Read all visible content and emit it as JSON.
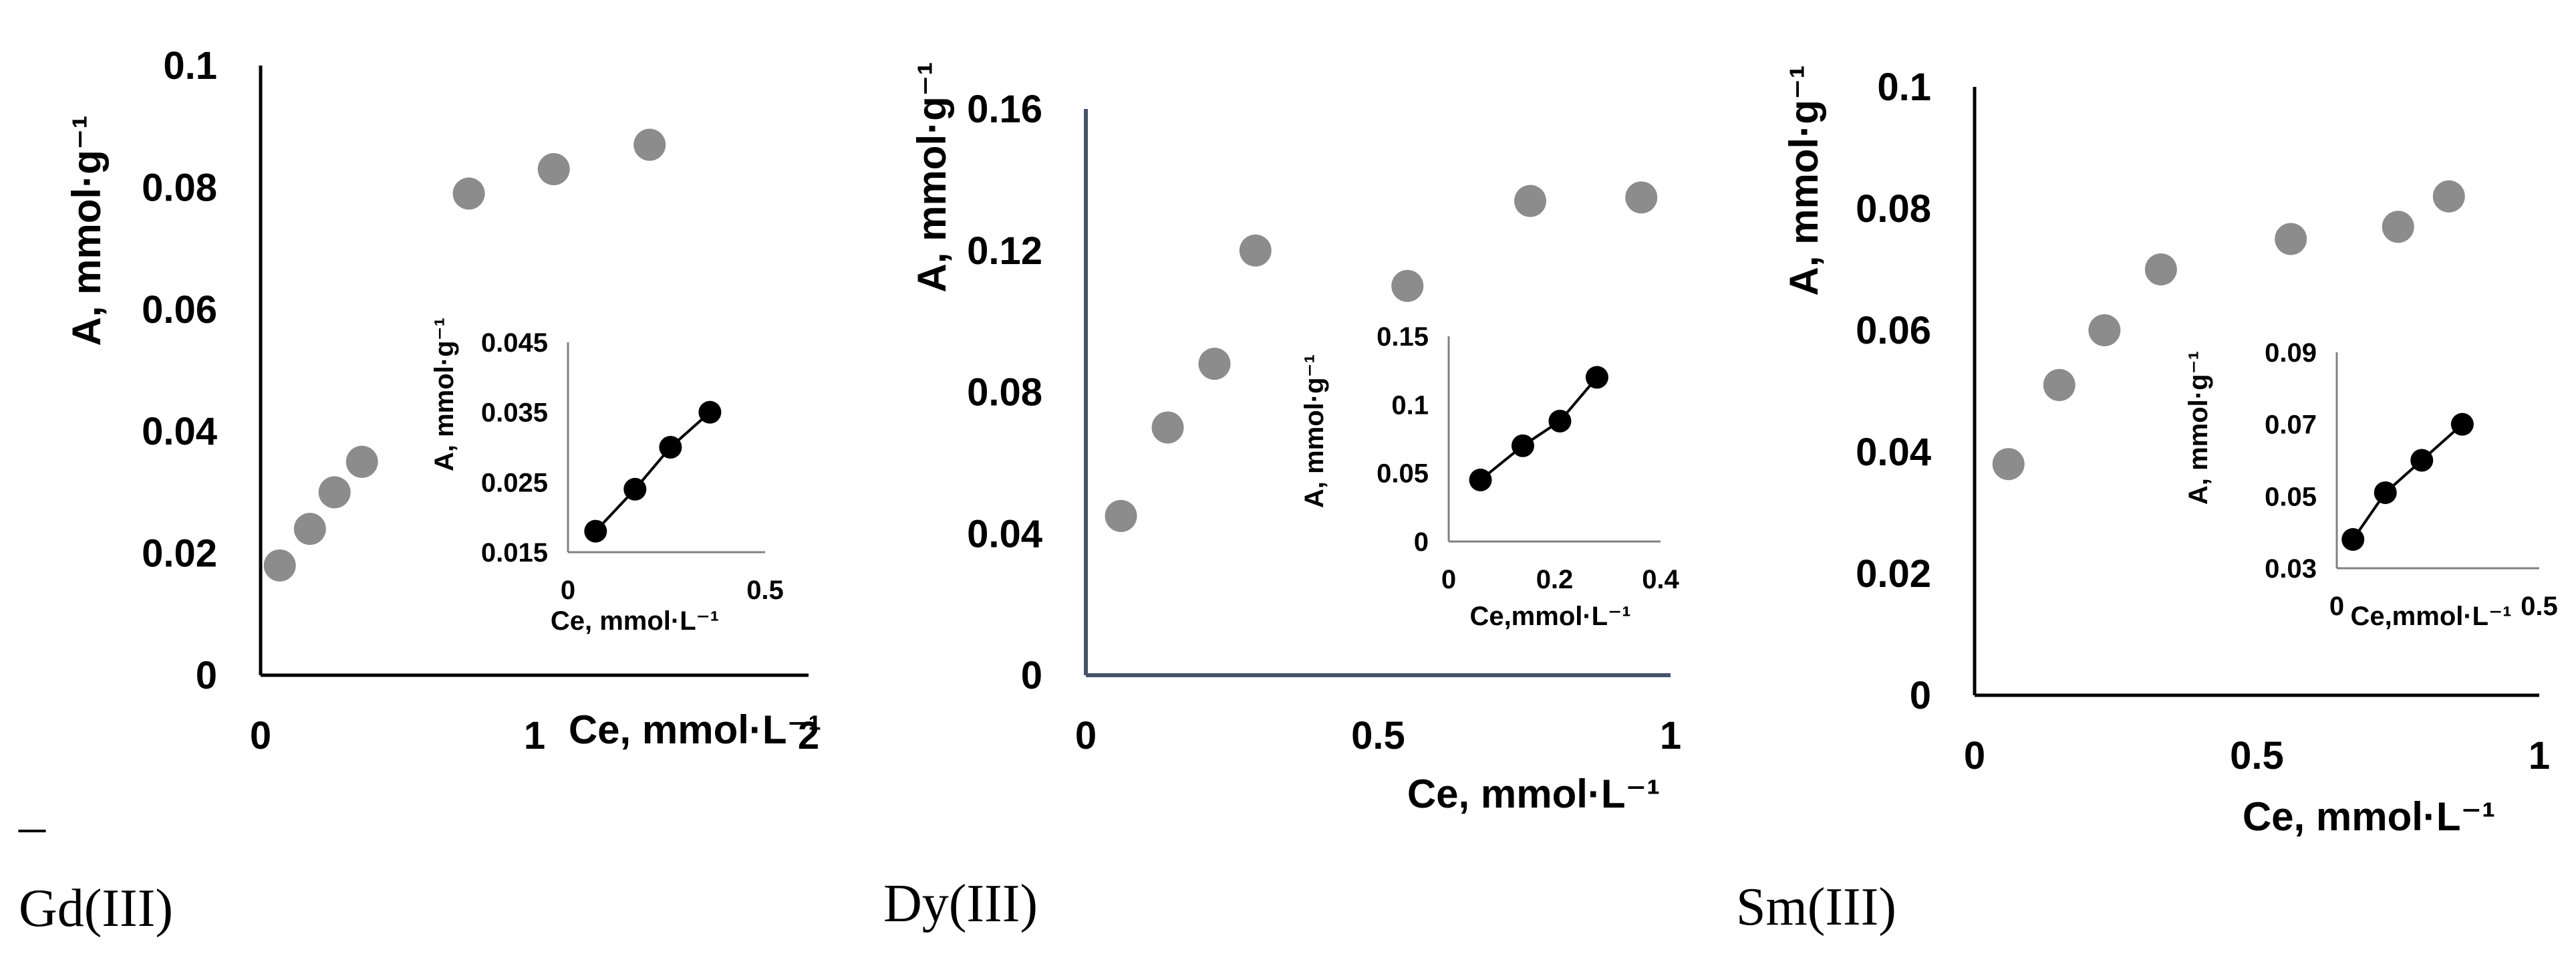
{
  "stray_mark": "–",
  "chart_data": [
    {
      "type": "scatter",
      "panel": "Gd(III)",
      "caption": "Gd(III)",
      "xlabel": "Ce, mmol·L⁻¹",
      "ylabel": "A, mmol·g⁻¹",
      "xlim": [
        0,
        2
      ],
      "ylim": [
        0,
        0.1
      ],
      "xticks": [
        "0",
        "1",
        "2"
      ],
      "yticks": [
        "0",
        "0.02",
        "0.04",
        "0.06",
        "0.08",
        "0.1"
      ],
      "series": [
        {
          "x": [
            0.07,
            0.18,
            0.27,
            0.37,
            0.76,
            1.07,
            1.42
          ],
          "y": [
            0.018,
            0.024,
            0.03,
            0.035,
            0.079,
            0.083,
            0.087
          ],
          "color": "#8c8c8c"
        }
      ],
      "inset": {
        "type": "scatter",
        "xlabel": "Ce, mmol·L⁻¹",
        "ylabel": "A, mmol·g⁻¹",
        "xlim": [
          0,
          0.5
        ],
        "ylim": [
          0.015,
          0.045
        ],
        "xticks": [
          "0",
          "0.5"
        ],
        "yticks": [
          "0.015",
          "0.025",
          "0.035",
          "0.045"
        ],
        "series": [
          {
            "x": [
              0.07,
              0.17,
              0.26,
              0.36
            ],
            "y": [
              0.018,
              0.024,
              0.03,
              0.035
            ],
            "color": "#000000"
          }
        ],
        "trendline": true
      }
    },
    {
      "type": "scatter",
      "panel": "Dy(III)",
      "caption": "Dy(III)",
      "xlabel": "Ce, mmol·L⁻¹",
      "ylabel": "A, mmol·g⁻¹",
      "xlim": [
        0,
        1
      ],
      "ylim": [
        0,
        0.16
      ],
      "xticks": [
        "0",
        "0.5",
        "1"
      ],
      "yticks": [
        "0",
        "0.04",
        "0.08",
        "0.12",
        "0.16"
      ],
      "series": [
        {
          "x": [
            0.06,
            0.14,
            0.22,
            0.29,
            0.55,
            0.76,
            0.95
          ],
          "y": [
            0.045,
            0.07,
            0.088,
            0.12,
            0.11,
            0.134,
            0.135
          ],
          "color": "#8c8c8c"
        }
      ],
      "inset": {
        "type": "scatter",
        "xlabel": "Ce,mmol·L⁻¹",
        "ylabel": "A, mmol·g⁻¹",
        "xlim": [
          0,
          0.4
        ],
        "ylim": [
          0,
          0.15
        ],
        "xticks": [
          "0",
          "0.2",
          "0.4"
        ],
        "yticks": [
          "0",
          "0.05",
          "0.1",
          "0.15"
        ],
        "series": [
          {
            "x": [
              0.06,
              0.14,
              0.21,
              0.28
            ],
            "y": [
              0.045,
              0.07,
              0.088,
              0.12
            ],
            "color": "#000000"
          }
        ],
        "trendline": true
      }
    },
    {
      "type": "scatter",
      "panel": "Sm(III)",
      "caption": "Sm(III)",
      "xlabel": "Ce, mmol·L⁻¹",
      "ylabel": "A, mmol·g⁻¹",
      "xlim": [
        0,
        1
      ],
      "ylim": [
        0,
        0.1
      ],
      "xticks": [
        "0",
        "0.5",
        "1"
      ],
      "yticks": [
        "0",
        "0.02",
        "0.04",
        "0.06",
        "0.08",
        "0.1"
      ],
      "series": [
        {
          "x": [
            0.06,
            0.15,
            0.23,
            0.33,
            0.56,
            0.75,
            0.84
          ],
          "y": [
            0.038,
            0.051,
            0.06,
            0.07,
            0.075,
            0.077,
            0.082
          ],
          "color": "#8c8c8c"
        }
      ],
      "inset": {
        "type": "scatter",
        "xlabel": "Ce,mmol·L⁻¹",
        "ylabel": "A, mmol·g⁻¹",
        "xlim": [
          0,
          0.5
        ],
        "ylim": [
          0.03,
          0.09
        ],
        "xticks": [
          "0",
          "0.5"
        ],
        "yticks": [
          "0.03",
          "0.05",
          "0.07",
          "0.09"
        ],
        "series": [
          {
            "x": [
              0.04,
              0.12,
              0.21,
              0.31
            ],
            "y": [
              0.038,
              0.051,
              0.06,
              0.07
            ],
            "color": "#000000"
          }
        ],
        "trendline": true
      }
    }
  ]
}
